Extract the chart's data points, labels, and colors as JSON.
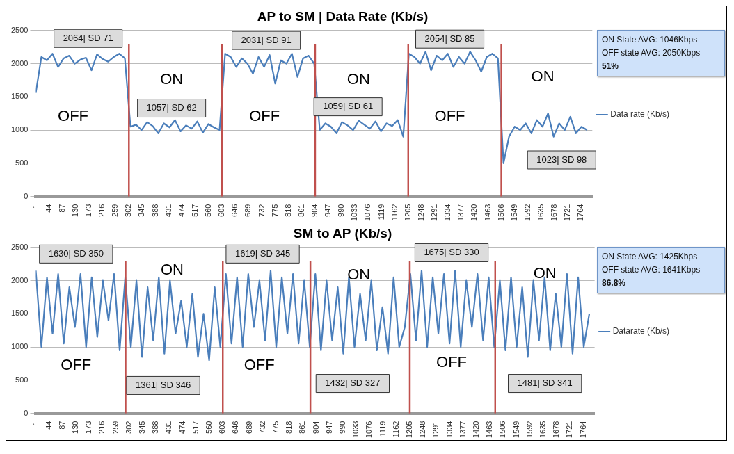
{
  "chart_data": [
    {
      "type": "line",
      "title": "AP to SM | Data Rate (Kb/s)",
      "x": [
        1,
        19,
        37,
        55,
        73,
        91,
        109,
        127,
        145,
        163,
        181,
        199,
        217,
        235,
        253,
        271,
        289,
        307,
        325,
        343,
        361,
        379,
        397,
        415,
        433,
        451,
        469,
        487,
        505,
        523,
        541,
        559,
        577,
        595,
        613,
        631,
        649,
        667,
        685,
        703,
        721,
        739,
        757,
        775,
        793,
        811,
        829,
        847,
        865,
        883,
        901,
        919,
        937,
        955,
        973,
        991,
        1009,
        1027,
        1045,
        1063,
        1081,
        1099,
        1117,
        1135,
        1153,
        1171,
        1189,
        1207,
        1225,
        1243,
        1261,
        1279,
        1297,
        1315,
        1333,
        1351,
        1369,
        1387,
        1405,
        1423,
        1441,
        1459,
        1477,
        1495,
        1513,
        1531,
        1549,
        1567,
        1585,
        1603,
        1621,
        1639,
        1657,
        1675,
        1693,
        1711,
        1729,
        1747,
        1765,
        1783
      ],
      "series": [
        {
          "name": "Data rate (Kb/s)",
          "color": "#4a7ebb",
          "values": [
            1560,
            2100,
            2050,
            2150,
            1950,
            2080,
            2120,
            2000,
            2060,
            2090,
            1900,
            2140,
            2070,
            2030,
            2100,
            2150,
            2080,
            1050,
            1080,
            1000,
            1120,
            1060,
            950,
            1100,
            1040,
            1150,
            980,
            1070,
            1020,
            1130,
            960,
            1090,
            1040,
            1000,
            2150,
            2100,
            1950,
            2080,
            2000,
            1850,
            2100,
            1950,
            2130,
            1700,
            2050,
            2000,
            2150,
            1800,
            2080,
            2120,
            2000,
            1000,
            1100,
            1050,
            950,
            1120,
            1070,
            1000,
            1140,
            1080,
            1020,
            1130,
            980,
            1100,
            1060,
            1150,
            900,
            2150,
            2100,
            2000,
            2180,
            1900,
            2120,
            2050,
            2150,
            1950,
            2100,
            2000,
            2180,
            2050,
            1880,
            2100,
            2150,
            2080,
            500,
            900,
            1050,
            1000,
            1100,
            950,
            1150,
            1050,
            1250,
            900,
            1100,
            1000,
            1200,
            950,
            1050,
            1000
          ]
        }
      ],
      "xlim": [
        1,
        1800
      ],
      "xticks": [
        1,
        44,
        87,
        130,
        173,
        216,
        259,
        302,
        345,
        388,
        431,
        474,
        517,
        560,
        603,
        646,
        689,
        732,
        775,
        818,
        861,
        904,
        947,
        990,
        1033,
        1076,
        1119,
        1162,
        1205,
        1248,
        1291,
        1334,
        1377,
        1420,
        1463,
        1506,
        1549,
        1592,
        1635,
        1678,
        1721,
        1764
      ],
      "ylim": [
        0,
        2500
      ],
      "yticks": [
        0,
        500,
        1000,
        1500,
        2000,
        2500
      ],
      "grid": "y",
      "legend": "right",
      "marker": "none",
      "line_style": "solid",
      "ref_lines": [
        {
          "axis": "x",
          "value": 302,
          "color": "#c0504d"
        },
        {
          "axis": "x",
          "value": 603,
          "color": "#c0504d"
        },
        {
          "axis": "x",
          "value": 904,
          "color": "#c0504d"
        },
        {
          "axis": "x",
          "value": 1205,
          "color": "#c0504d"
        },
        {
          "axis": "x",
          "value": 1506,
          "color": "#c0504d"
        }
      ],
      "annotations": [
        "2064| SD 71",
        "1057| SD 62",
        "2031| SD 91",
        "1059| SD 61",
        "2054| SD 85",
        "1023| SD 98",
        "OFF",
        "ON",
        "OFF",
        "ON",
        "OFF",
        "ON",
        "ON State AVG: 1046Kbps",
        "OFF state AVG:  2050Kbps",
        "51%"
      ]
    },
    {
      "type": "line",
      "title": "SM to AP (Kb/s)",
      "x": [
        1,
        19,
        37,
        55,
        73,
        91,
        109,
        127,
        145,
        163,
        181,
        199,
        217,
        235,
        253,
        271,
        289,
        307,
        325,
        343,
        361,
        379,
        397,
        415,
        433,
        451,
        469,
        487,
        505,
        523,
        541,
        559,
        577,
        595,
        613,
        631,
        649,
        667,
        685,
        703,
        721,
        739,
        757,
        775,
        793,
        811,
        829,
        847,
        865,
        883,
        901,
        919,
        937,
        955,
        973,
        991,
        1009,
        1027,
        1045,
        1063,
        1081,
        1099,
        1117,
        1135,
        1153,
        1171,
        1189,
        1207,
        1225,
        1243,
        1261,
        1279,
        1297,
        1315,
        1333,
        1351,
        1369,
        1387,
        1405,
        1423,
        1441,
        1459,
        1477,
        1495,
        1513,
        1531,
        1549,
        1567,
        1585,
        1603,
        1621,
        1639,
        1657,
        1675,
        1693,
        1711,
        1729,
        1747,
        1765,
        1783
      ],
      "series": [
        {
          "name": "Datarate (Kb/s)",
          "color": "#4a7ebb",
          "values": [
            2150,
            1000,
            2050,
            1200,
            2100,
            1050,
            1900,
            1300,
            2100,
            1000,
            2050,
            1150,
            2000,
            1400,
            2100,
            950,
            2050,
            1000,
            2000,
            850,
            1900,
            1100,
            2050,
            900,
            2000,
            1200,
            1700,
            1000,
            1800,
            850,
            1500,
            800,
            1900,
            1000,
            2100,
            1050,
            2050,
            1000,
            2100,
            1300,
            2000,
            1100,
            2150,
            1000,
            2050,
            1200,
            2100,
            1050,
            2000,
            1000,
            2100,
            950,
            2000,
            1100,
            1900,
            900,
            2050,
            1000,
            1800,
            1100,
            2000,
            950,
            1600,
            900,
            2050,
            1000,
            1300,
            2100,
            1100,
            2150,
            1000,
            2050,
            1200,
            2100,
            1050,
            2150,
            1000,
            2000,
            1300,
            2100,
            1100,
            2050,
            1000,
            2000,
            950,
            2050,
            1000,
            1900,
            850,
            2000,
            1100,
            2050,
            950,
            1800,
            1000,
            2100,
            900,
            2050,
            1000,
            1500
          ]
        }
      ],
      "xlim": [
        1,
        1800
      ],
      "xticks": [
        1,
        44,
        87,
        130,
        173,
        216,
        259,
        302,
        345,
        388,
        431,
        474,
        517,
        560,
        603,
        646,
        689,
        732,
        775,
        818,
        861,
        904,
        947,
        990,
        1033,
        1076,
        1119,
        1162,
        1205,
        1248,
        1291,
        1334,
        1377,
        1420,
        1463,
        1506,
        1549,
        1592,
        1635,
        1678,
        1721,
        1764
      ],
      "ylim": [
        0,
        2500
      ],
      "yticks": [
        0,
        500,
        1000,
        1500,
        2000,
        2500
      ],
      "grid": "y",
      "legend": "right",
      "marker": "none",
      "line_style": "solid",
      "ref_lines": [
        {
          "axis": "x",
          "value": 290,
          "color": "#c0504d"
        },
        {
          "axis": "x",
          "value": 603,
          "color": "#c0504d"
        },
        {
          "axis": "x",
          "value": 885,
          "color": "#c0504d"
        },
        {
          "axis": "x",
          "value": 1205,
          "color": "#c0504d"
        },
        {
          "axis": "x",
          "value": 1480,
          "color": "#c0504d"
        }
      ],
      "annotations": [
        "1630| SD 350",
        "1361| SD 346",
        "1619| SD 345",
        "1432| SD 327",
        "1675| SD 330",
        "1481| SD 341",
        "OFF",
        "ON",
        "OFF",
        "ON",
        "OFF",
        "ON",
        "ON State AVG: 1425Kbps",
        "OFF state AVG:  1641Kbps",
        "86.8%"
      ]
    }
  ]
}
